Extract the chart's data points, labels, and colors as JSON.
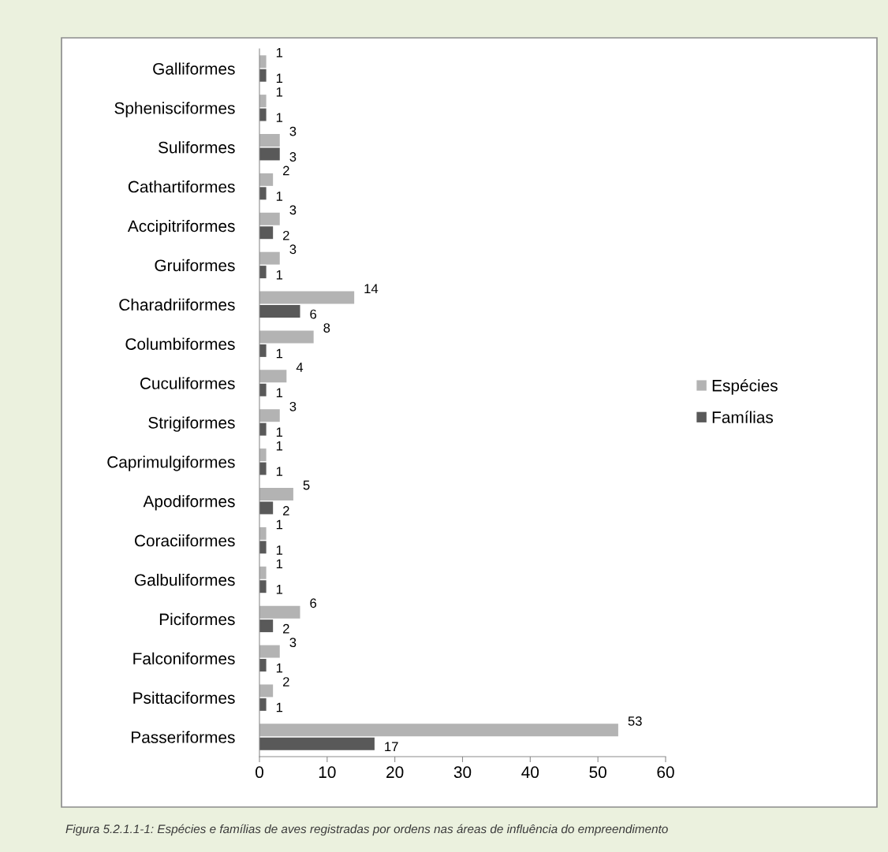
{
  "chart_data": {
    "type": "bar",
    "orientation": "horizontal",
    "categories": [
      "Galliformes",
      "Sphenisciformes",
      "Suliformes",
      "Cathartiformes",
      "Accipitriformes",
      "Gruiformes",
      "Charadriiformes",
      "Columbiformes",
      "Cuculiformes",
      "Strigiformes",
      "Caprimulgiformes",
      "Apodiformes",
      "Coraciiformes",
      "Galbuliformes",
      "Piciformes",
      "Falconiformes",
      "Psittaciformes",
      "Passeriformes"
    ],
    "series": [
      {
        "name": "Espécies",
        "color": "#b3b3b3",
        "values": [
          1,
          1,
          3,
          2,
          3,
          3,
          14,
          8,
          4,
          3,
          1,
          5,
          1,
          1,
          6,
          3,
          2,
          53
        ]
      },
      {
        "name": "Famílias",
        "color": "#595959",
        "values": [
          1,
          1,
          3,
          1,
          2,
          1,
          6,
          1,
          1,
          1,
          1,
          2,
          1,
          1,
          2,
          1,
          1,
          17
        ]
      }
    ],
    "xlim": [
      0,
      60
    ],
    "xticks": [
      0,
      10,
      20,
      30,
      40,
      50,
      60
    ],
    "data_labels": true,
    "legend": "right",
    "grid": false,
    "annotations": [
      "Figura 5.2.1.1-1: Espécies e famílias de aves registradas por ordens nas áreas de influência do empreendimento"
    ]
  }
}
